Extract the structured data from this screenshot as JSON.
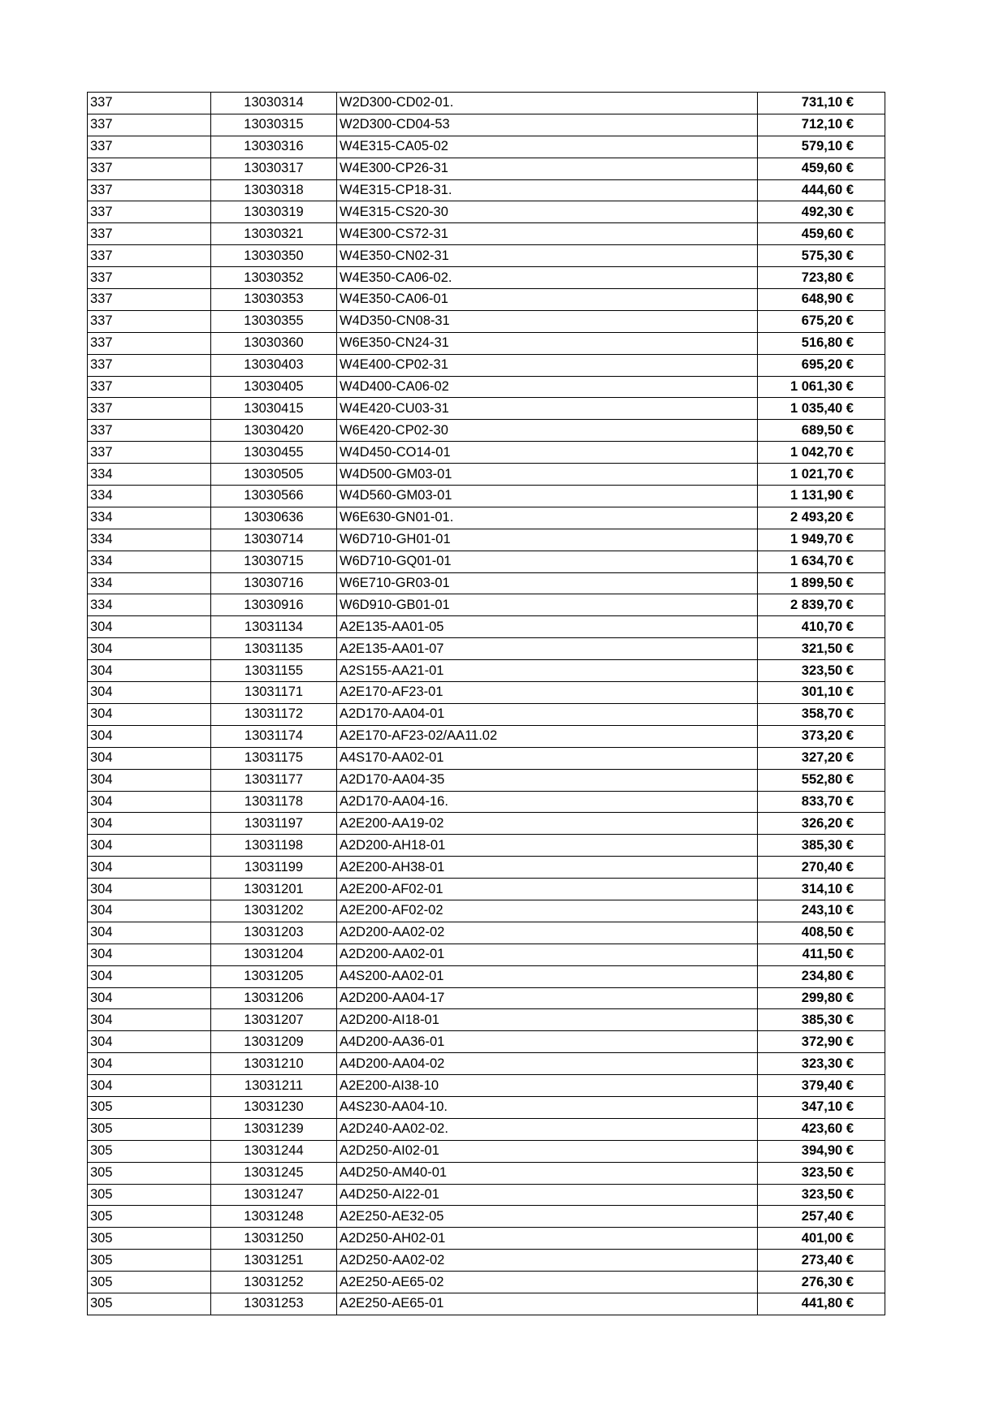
{
  "rows": [
    [
      "337",
      "13030314",
      "W2D300-CD02-01.",
      "731,10 €"
    ],
    [
      "337",
      "13030315",
      "W2D300-CD04-53",
      "712,10 €"
    ],
    [
      "337",
      "13030316",
      "W4E315-CA05-02",
      "579,10 €"
    ],
    [
      "337",
      "13030317",
      "W4E300-CP26-31",
      "459,60 €"
    ],
    [
      "337",
      "13030318",
      "W4E315-CP18-31.",
      "444,60 €"
    ],
    [
      "337",
      "13030319",
      "W4E315-CS20-30",
      "492,30 €"
    ],
    [
      "337",
      "13030321",
      "W4E300-CS72-31",
      "459,60 €"
    ],
    [
      "337",
      "13030350",
      "W4E350-CN02-31",
      "575,30 €"
    ],
    [
      "337",
      "13030352",
      "W4E350-CA06-02.",
      "723,80 €"
    ],
    [
      "337",
      "13030353",
      "W4E350-CA06-01",
      "648,90 €"
    ],
    [
      "337",
      "13030355",
      "W4D350-CN08-31",
      "675,20 €"
    ],
    [
      "337",
      "13030360",
      "W6E350-CN24-31",
      "516,80 €"
    ],
    [
      "337",
      "13030403",
      "W4E400-CP02-31",
      "695,20 €"
    ],
    [
      "337",
      "13030405",
      "W4D400-CA06-02",
      "1 061,30 €"
    ],
    [
      "337",
      "13030415",
      "W4E420-CU03-31",
      "1 035,40 €"
    ],
    [
      "337",
      "13030420",
      "W6E420-CP02-30",
      "689,50 €"
    ],
    [
      "337",
      "13030455",
      "W4D450-CO14-01",
      "1 042,70 €"
    ],
    [
      "334",
      "13030505",
      "W4D500-GM03-01",
      "1 021,70 €"
    ],
    [
      "334",
      "13030566",
      "W4D560-GM03-01",
      "1 131,90 €"
    ],
    [
      "334",
      "13030636",
      "W6E630-GN01-01.",
      "2 493,20 €"
    ],
    [
      "334",
      "13030714",
      "W6D710-GH01-01",
      "1 949,70 €"
    ],
    [
      "334",
      "13030715",
      "W6D710-GQ01-01",
      "1 634,70 €"
    ],
    [
      "334",
      "13030716",
      "W6E710-GR03-01",
      "1 899,50 €"
    ],
    [
      "334",
      "13030916",
      "W6D910-GB01-01",
      "2 839,70 €"
    ],
    [
      "304",
      "13031134",
      "A2E135-AA01-05",
      "410,70 €"
    ],
    [
      "304",
      "13031135",
      "A2E135-AA01-07",
      "321,50 €"
    ],
    [
      "304",
      "13031155",
      "A2S155-AA21-01",
      "323,50 €"
    ],
    [
      "304",
      "13031171",
      "A2E170-AF23-01",
      "301,10 €"
    ],
    [
      "304",
      "13031172",
      "A2D170-AA04-01",
      "358,70 €"
    ],
    [
      "304",
      "13031174",
      "A2E170-AF23-02/AA11.02",
      "373,20 €"
    ],
    [
      "304",
      "13031175",
      "A4S170-AA02-01",
      "327,20 €"
    ],
    [
      "304",
      "13031177",
      "A2D170-AA04-35",
      "552,80 €"
    ],
    [
      "304",
      "13031178",
      "A2D170-AA04-16.",
      "833,70 €"
    ],
    [
      "304",
      "13031197",
      "A2E200-AA19-02",
      "326,20 €"
    ],
    [
      "304",
      "13031198",
      "A2D200-AH18-01",
      "385,30 €"
    ],
    [
      "304",
      "13031199",
      "A2E200-AH38-01",
      "270,40 €"
    ],
    [
      "304",
      "13031201",
      "A2E200-AF02-01",
      "314,10 €"
    ],
    [
      "304",
      "13031202",
      "A2E200-AF02-02",
      "243,10 €"
    ],
    [
      "304",
      "13031203",
      "A2D200-AA02-02",
      "408,50 €"
    ],
    [
      "304",
      "13031204",
      "A2D200-AA02-01",
      "411,50 €"
    ],
    [
      "304",
      "13031205",
      "A4S200-AA02-01",
      "234,80 €"
    ],
    [
      "304",
      "13031206",
      "A2D200-AA04-17",
      "299,80 €"
    ],
    [
      "304",
      "13031207",
      "A2D200-AI18-01",
      "385,30 €"
    ],
    [
      "304",
      "13031209",
      "A4D200-AA36-01",
      "372,90 €"
    ],
    [
      "304",
      "13031210",
      "A4D200-AA04-02",
      "323,30 €"
    ],
    [
      "304",
      "13031211",
      "A2E200-AI38-10",
      "379,40 €"
    ],
    [
      "305",
      "13031230",
      "A4S230-AA04-10.",
      "347,10 €"
    ],
    [
      "305",
      "13031239",
      "A2D240-AA02-02.",
      "423,60 €"
    ],
    [
      "305",
      "13031244",
      "A2D250-AI02-01",
      "394,90 €"
    ],
    [
      "305",
      "13031245",
      "A4D250-AM40-01",
      "323,50 €"
    ],
    [
      "305",
      "13031247",
      "A4D250-AI22-01",
      "323,50 €"
    ],
    [
      "305",
      "13031248",
      "A2E250-AE32-05",
      "257,40 €"
    ],
    [
      "305",
      "13031250",
      "A2D250-AH02-01",
      "401,00 €"
    ],
    [
      "305",
      "13031251",
      "A2D250-AA02-02",
      "273,40 €"
    ],
    [
      "305",
      "13031252",
      "A2E250-AE65-02",
      "276,30 €"
    ],
    [
      "305",
      "13031253",
      "A2E250-AE65-01",
      "441,80 €"
    ]
  ]
}
